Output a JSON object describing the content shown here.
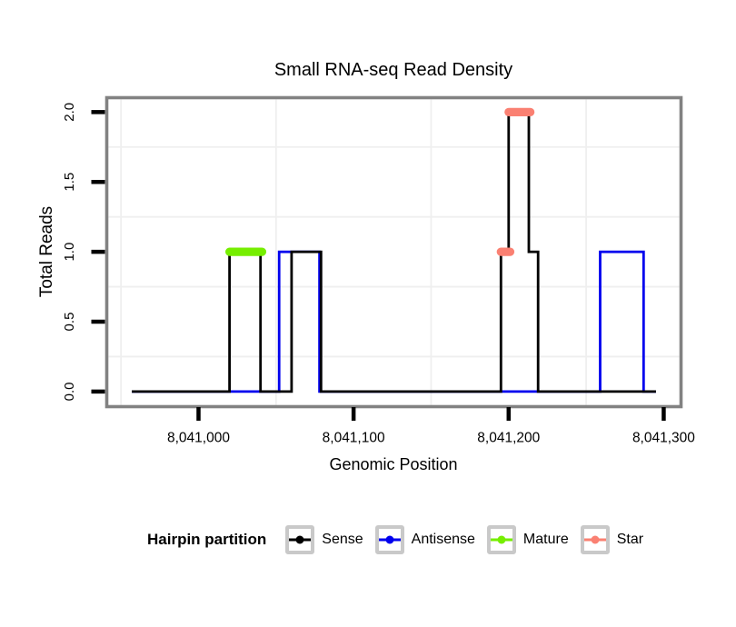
{
  "chart_data": {
    "type": "line",
    "subtype": "step-density",
    "title": "Small RNA-seq Read Density",
    "xlabel": "Genomic Position",
    "ylabel": "Total Reads",
    "xlim": [
      8040942,
      8041310
    ],
    "ylim": [
      -0.095,
      2.09
    ],
    "grid": "minor-only",
    "x_ticks": {
      "values": [
        8041000,
        8041100,
        8041200,
        8041300
      ],
      "labels": [
        "8,041,000",
        "8,041,100",
        "8,041,200",
        "8,041,300"
      ]
    },
    "y_ticks": {
      "values": [
        0,
        0.5,
        1,
        1.5,
        2
      ],
      "labels": [
        "0.0",
        "0.5",
        "1.0",
        "1.5",
        "2.0"
      ]
    },
    "minor_grid": {
      "x": [
        8040950,
        8041050,
        8041150,
        8041250
      ],
      "y": [
        0.25,
        0.75,
        1.25,
        1.75
      ]
    },
    "series": [
      {
        "name": "Antisense",
        "color": "#0000EE",
        "points": [
          [
            8040957,
            0
          ],
          [
            8041052,
            0
          ],
          [
            8041052,
            1
          ],
          [
            8041078,
            1
          ],
          [
            8041078,
            0
          ],
          [
            8041259,
            0
          ],
          [
            8041259,
            1
          ],
          [
            8041287,
            1
          ],
          [
            8041287,
            0
          ],
          [
            8041295,
            0
          ]
        ]
      },
      {
        "name": "Sense",
        "color": "#000000",
        "points": [
          [
            8040957,
            0
          ],
          [
            8041020,
            0
          ],
          [
            8041020,
            1
          ],
          [
            8041040,
            1
          ],
          [
            8041040,
            0
          ],
          [
            8041060,
            0
          ],
          [
            8041060,
            1
          ],
          [
            8041079,
            1
          ],
          [
            8041079,
            0
          ],
          [
            8041195,
            0
          ],
          [
            8041195,
            1
          ],
          [
            8041200,
            1
          ],
          [
            8041200,
            2
          ],
          [
            8041213,
            2
          ],
          [
            8041213,
            1
          ],
          [
            8041219,
            1
          ],
          [
            8041219,
            0
          ],
          [
            8041295,
            0
          ]
        ]
      }
    ],
    "segments": [
      {
        "name": "Mature",
        "color": "#76EE00",
        "y": 1,
        "x1": 8041020,
        "x2": 8041041
      },
      {
        "name": "Star",
        "color": "#FA8072",
        "y": 1,
        "x1": 8041195,
        "x2": 8041201
      },
      {
        "name": "Star",
        "color": "#FA8072",
        "y": 2,
        "x1": 8041200,
        "x2": 8041214
      }
    ],
    "legend": {
      "title": "Hairpin partition",
      "position": "bottom",
      "entries": [
        {
          "label": "Sense",
          "color": "#000000"
        },
        {
          "label": "Antisense",
          "color": "#0000EE"
        },
        {
          "label": "Mature",
          "color": "#76EE00"
        },
        {
          "label": "Star",
          "color": "#FA8072"
        }
      ]
    },
    "panel": {
      "border_color": "#828282",
      "grid_color": "#EFEFEF",
      "tick_color": "#000000",
      "background": "#FFFFFF"
    }
  }
}
